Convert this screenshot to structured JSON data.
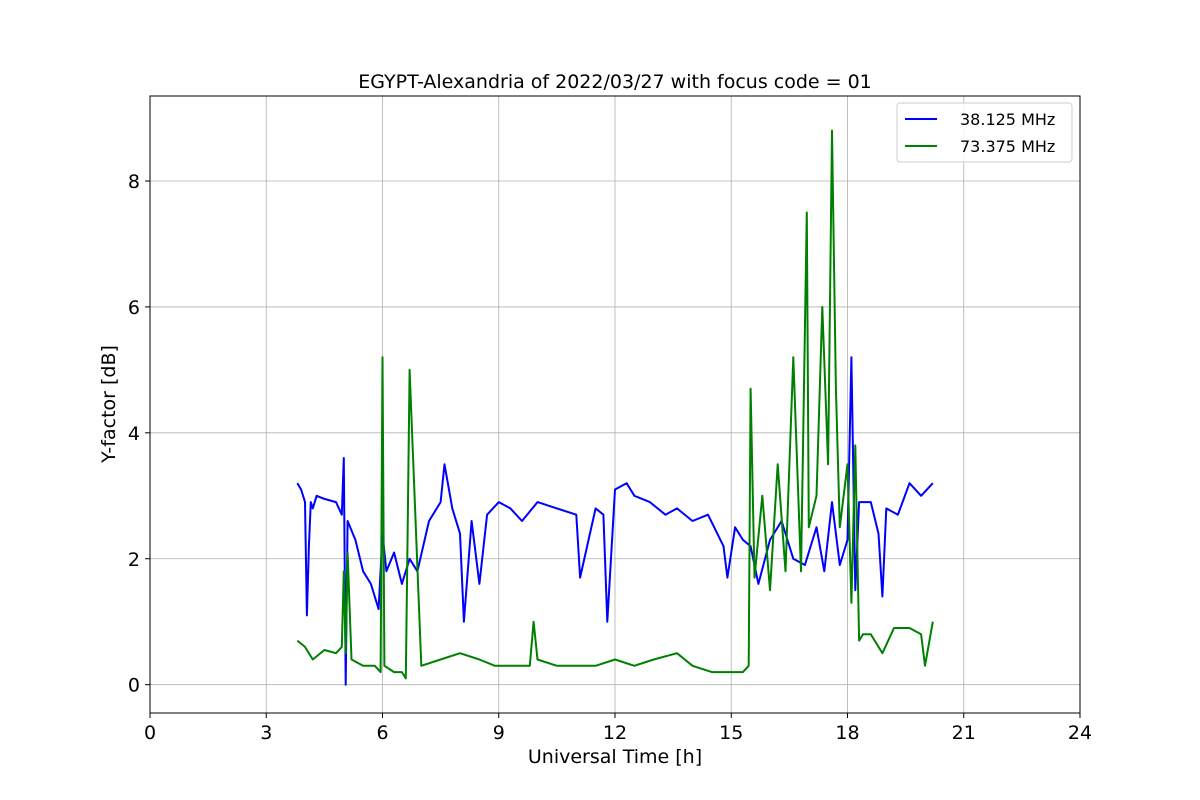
{
  "chart_data": {
    "type": "line",
    "title": "EGYPT-Alexandria of 2022/03/27 with focus code = 01",
    "xlabel": "Universal Time [h]",
    "ylabel": "Y-factor [dB]",
    "xlim": [
      0,
      24
    ],
    "ylim": [
      -0.45,
      9.35
    ],
    "xticks": [
      0,
      3,
      6,
      9,
      12,
      15,
      18,
      21,
      24
    ],
    "yticks": [
      0,
      2,
      4,
      6,
      8
    ],
    "grid": true,
    "legend_position": "top-right",
    "series": [
      {
        "name": "38.125 MHz",
        "color": "#0000ff",
        "x": [
          3.8,
          3.9,
          4.0,
          4.05,
          4.1,
          4.15,
          4.2,
          4.3,
          4.5,
          4.8,
          4.95,
          5.0,
          5.05,
          5.1,
          5.3,
          5.5,
          5.7,
          5.9,
          6.0,
          6.1,
          6.3,
          6.5,
          6.7,
          6.9,
          7.2,
          7.5,
          7.6,
          7.8,
          8.0,
          8.1,
          8.3,
          8.5,
          8.7,
          9.0,
          9.3,
          9.6,
          10.0,
          10.5,
          11.0,
          11.1,
          11.5,
          11.7,
          11.8,
          12.0,
          12.3,
          12.5,
          12.9,
          13.3,
          13.6,
          14.0,
          14.4,
          14.8,
          14.9,
          15.1,
          15.3,
          15.5,
          15.7,
          16.0,
          16.3,
          16.6,
          16.9,
          17.2,
          17.4,
          17.6,
          17.8,
          18.0,
          18.1,
          18.2,
          18.3,
          18.6,
          18.8,
          18.9,
          19.0,
          19.3,
          19.6,
          19.9,
          20.2
        ],
        "y": [
          3.2,
          3.1,
          2.9,
          1.1,
          2.2,
          2.9,
          2.8,
          3.0,
          2.95,
          2.9,
          2.7,
          3.6,
          0.0,
          2.6,
          2.3,
          1.8,
          1.6,
          1.2,
          2.4,
          1.8,
          2.1,
          1.6,
          2.0,
          1.8,
          2.6,
          2.9,
          3.5,
          2.8,
          2.4,
          1.0,
          2.6,
          1.6,
          2.7,
          2.9,
          2.8,
          2.6,
          2.9,
          2.8,
          2.7,
          1.7,
          2.8,
          2.7,
          1.0,
          3.1,
          3.2,
          3.0,
          2.9,
          2.7,
          2.8,
          2.6,
          2.7,
          2.2,
          1.7,
          2.5,
          2.3,
          2.2,
          1.6,
          2.3,
          2.6,
          2.0,
          1.9,
          2.5,
          1.8,
          2.9,
          1.9,
          2.3,
          5.2,
          1.5,
          2.9,
          2.9,
          2.4,
          1.4,
          2.8,
          2.7,
          3.2,
          3.0,
          3.2
        ]
      },
      {
        "name": "73.375 MHz",
        "color": "#008000",
        "x": [
          3.8,
          4.0,
          4.2,
          4.5,
          4.8,
          4.95,
          5.0,
          5.05,
          5.1,
          5.2,
          5.5,
          5.8,
          5.95,
          6.0,
          6.05,
          6.3,
          6.5,
          6.6,
          6.65,
          6.7,
          7.0,
          7.5,
          8.0,
          8.5,
          8.9,
          9.2,
          9.8,
          9.9,
          10.0,
          10.5,
          11.0,
          11.5,
          12.0,
          12.5,
          13.0,
          13.6,
          14.0,
          14.5,
          15.0,
          15.3,
          15.45,
          15.5,
          15.6,
          15.8,
          16.0,
          16.2,
          16.4,
          16.6,
          16.8,
          16.95,
          17.0,
          17.2,
          17.35,
          17.5,
          17.6,
          17.7,
          17.8,
          18.0,
          18.1,
          18.2,
          18.3,
          18.4,
          18.6,
          18.9,
          19.2,
          19.6,
          19.9,
          20.0,
          20.2
        ],
        "y": [
          0.7,
          0.6,
          0.4,
          0.55,
          0.5,
          0.6,
          1.8,
          0.5,
          2.1,
          0.4,
          0.3,
          0.3,
          0.2,
          5.2,
          0.3,
          0.2,
          0.2,
          0.1,
          2.5,
          5.0,
          0.3,
          0.4,
          0.5,
          0.4,
          0.3,
          0.3,
          0.3,
          1.0,
          0.4,
          0.3,
          0.3,
          0.3,
          0.4,
          0.3,
          0.4,
          0.5,
          0.3,
          0.2,
          0.2,
          0.2,
          0.3,
          4.7,
          1.7,
          3.0,
          1.5,
          3.5,
          1.8,
          5.2,
          1.8,
          7.5,
          2.5,
          3.0,
          6.0,
          3.5,
          8.8,
          4.7,
          2.5,
          3.5,
          1.3,
          3.8,
          0.7,
          0.8,
          0.8,
          0.5,
          0.9,
          0.9,
          0.8,
          0.3,
          1.0
        ]
      }
    ]
  }
}
